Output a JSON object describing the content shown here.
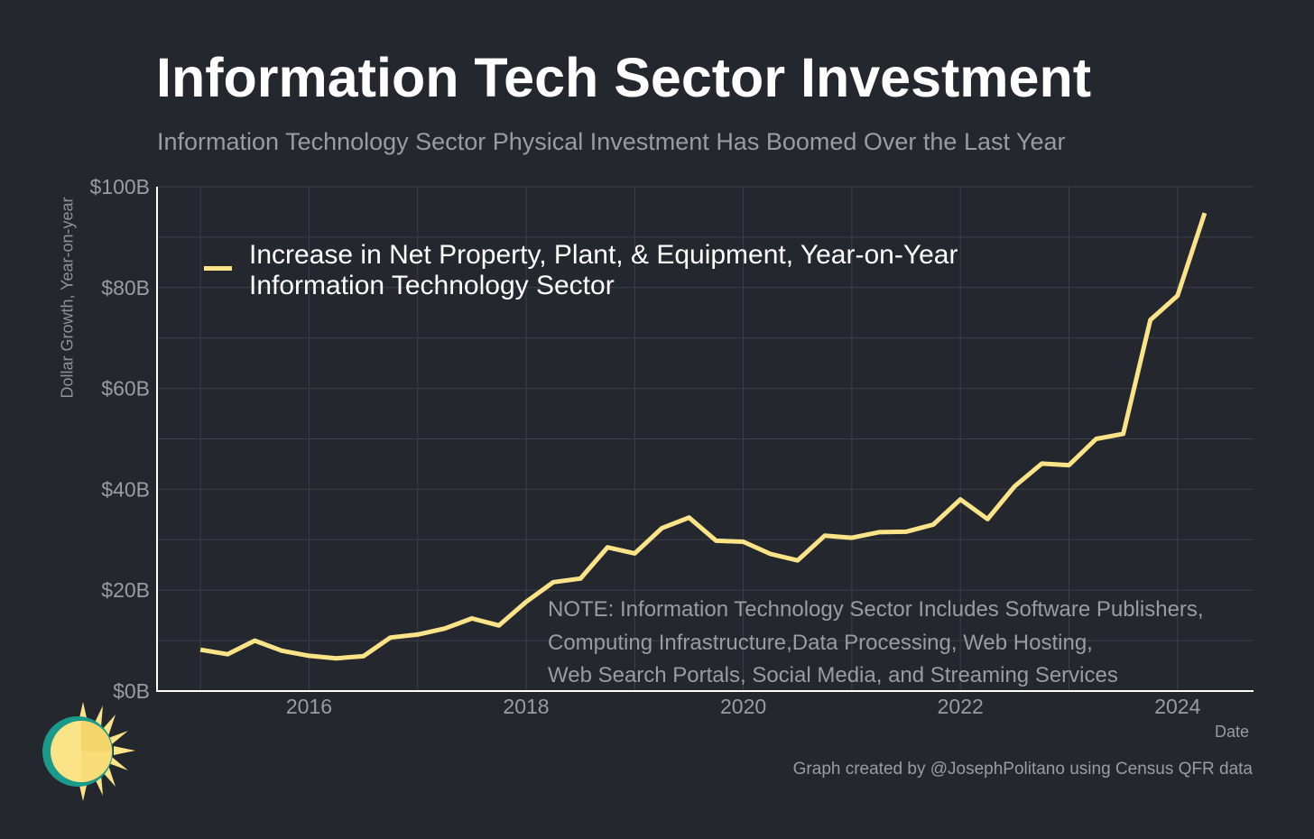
{
  "chart_data": {
    "type": "line",
    "title": "Information Tech Sector Investment",
    "subtitle": "Information Technology Sector Physical Investment Has Boomed Over the Last Year",
    "xlabel": "Date",
    "ylabel": "Dollar Growth, Year-on-year",
    "ylim": [
      0,
      100
    ],
    "xlim": [
      2014.6,
      2024.7
    ],
    "yticks": [
      0,
      20,
      40,
      60,
      80,
      100
    ],
    "ytick_labels": [
      "$0B",
      "$20B",
      "$40B",
      "$60B",
      "$80B",
      "$100B"
    ],
    "xticks": [
      2016,
      2018,
      2020,
      2022,
      2024
    ],
    "xtick_labels": [
      "2016",
      "2018",
      "2020",
      "2022",
      "2024"
    ],
    "grid": true,
    "legend_position": "top-left",
    "series": [
      {
        "name": "Increase in Net Property, Plant, & Equipment, Year-on-Year",
        "name_line2": "Information Technology Sector",
        "color": "#fbe488",
        "x": [
          2015.0,
          2015.25,
          2015.5,
          2015.75,
          2016.0,
          2016.25,
          2016.5,
          2016.75,
          2017.0,
          2017.25,
          2017.5,
          2017.75,
          2018.0,
          2018.25,
          2018.5,
          2018.75,
          2019.0,
          2019.25,
          2019.5,
          2019.75,
          2020.0,
          2020.25,
          2020.5,
          2020.75,
          2021.0,
          2021.25,
          2021.5,
          2021.75,
          2022.0,
          2022.25,
          2022.5,
          2022.75,
          2023.0,
          2023.25,
          2023.5,
          2023.75,
          2024.0,
          2024.25
        ],
        "values": [
          8.2,
          7.3,
          10.0,
          8.0,
          7.0,
          6.5,
          6.9,
          10.6,
          11.2,
          12.4,
          14.4,
          13.0,
          17.7,
          21.6,
          22.3,
          28.5,
          27.3,
          32.3,
          34.4,
          29.8,
          29.6,
          27.2,
          25.9,
          30.8,
          30.4,
          31.5,
          31.6,
          33.0,
          38.0,
          34.1,
          40.6,
          45.1,
          44.8,
          50.0,
          51.0,
          73.6,
          78.4,
          94.8
        ]
      }
    ]
  },
  "note": {
    "line1": "NOTE: Information Technology Sector Includes Software Publishers,",
    "line2": "Computing Infrastructure,Data Processing, Web Hosting,",
    "line3": "Web Search Portals, Social Media, and Streaming Services"
  },
  "credit": "Graph created by @JosephPolitano using Census QFR data",
  "colors": {
    "background": "#24272e",
    "line": "#fbe488",
    "grid": "#3d4048",
    "axis": "#ffffff",
    "muted_text": "#9a9ca1"
  }
}
